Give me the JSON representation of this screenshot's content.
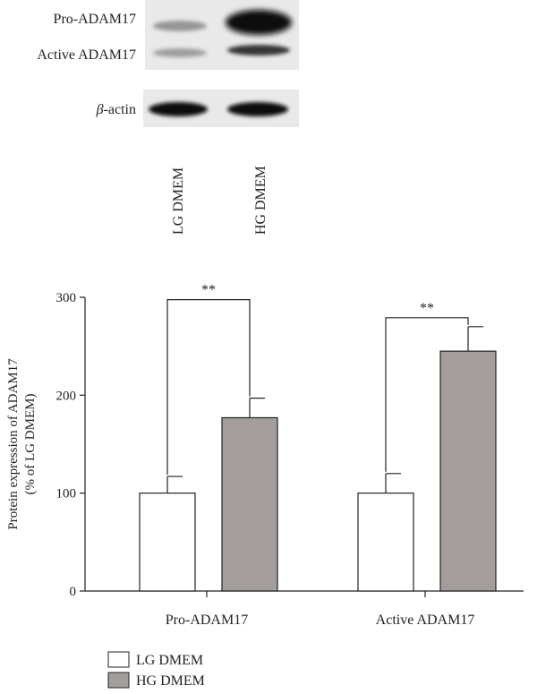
{
  "blot": {
    "band_labels": [
      "Pro-ADAM17",
      "Active ADAM17"
    ],
    "loading_label_symbol": "β",
    "loading_label_suffix": "-actin",
    "lanes": [
      "LG DMEM",
      "HG DMEM"
    ],
    "background_color": "#e9e9e9",
    "band_color": "#111111"
  },
  "chart_data": {
    "type": "bar",
    "categories": [
      "Pro-ADAM17",
      "Active ADAM17"
    ],
    "series": [
      {
        "name": "LG DMEM",
        "values": [
          100,
          100
        ],
        "errors": [
          17,
          20
        ],
        "color": "#ffffff"
      },
      {
        "name": "HG DMEM",
        "values": [
          177,
          245
        ],
        "errors": [
          20,
          25
        ],
        "color": "#a39e9c"
      }
    ],
    "ylabel_line1": "Protein expression of ADAM17",
    "ylabel_line2": "(% of LG DMEM)",
    "xlabel": "",
    "ylim": [
      0,
      300
    ],
    "yticks": [
      0,
      100,
      200,
      300
    ],
    "significance": [
      {
        "category": "Pro-ADAM17",
        "label": "**"
      },
      {
        "category": "Active ADAM17",
        "label": "**"
      }
    ],
    "grid": false,
    "legend_position": "bottom-left"
  }
}
